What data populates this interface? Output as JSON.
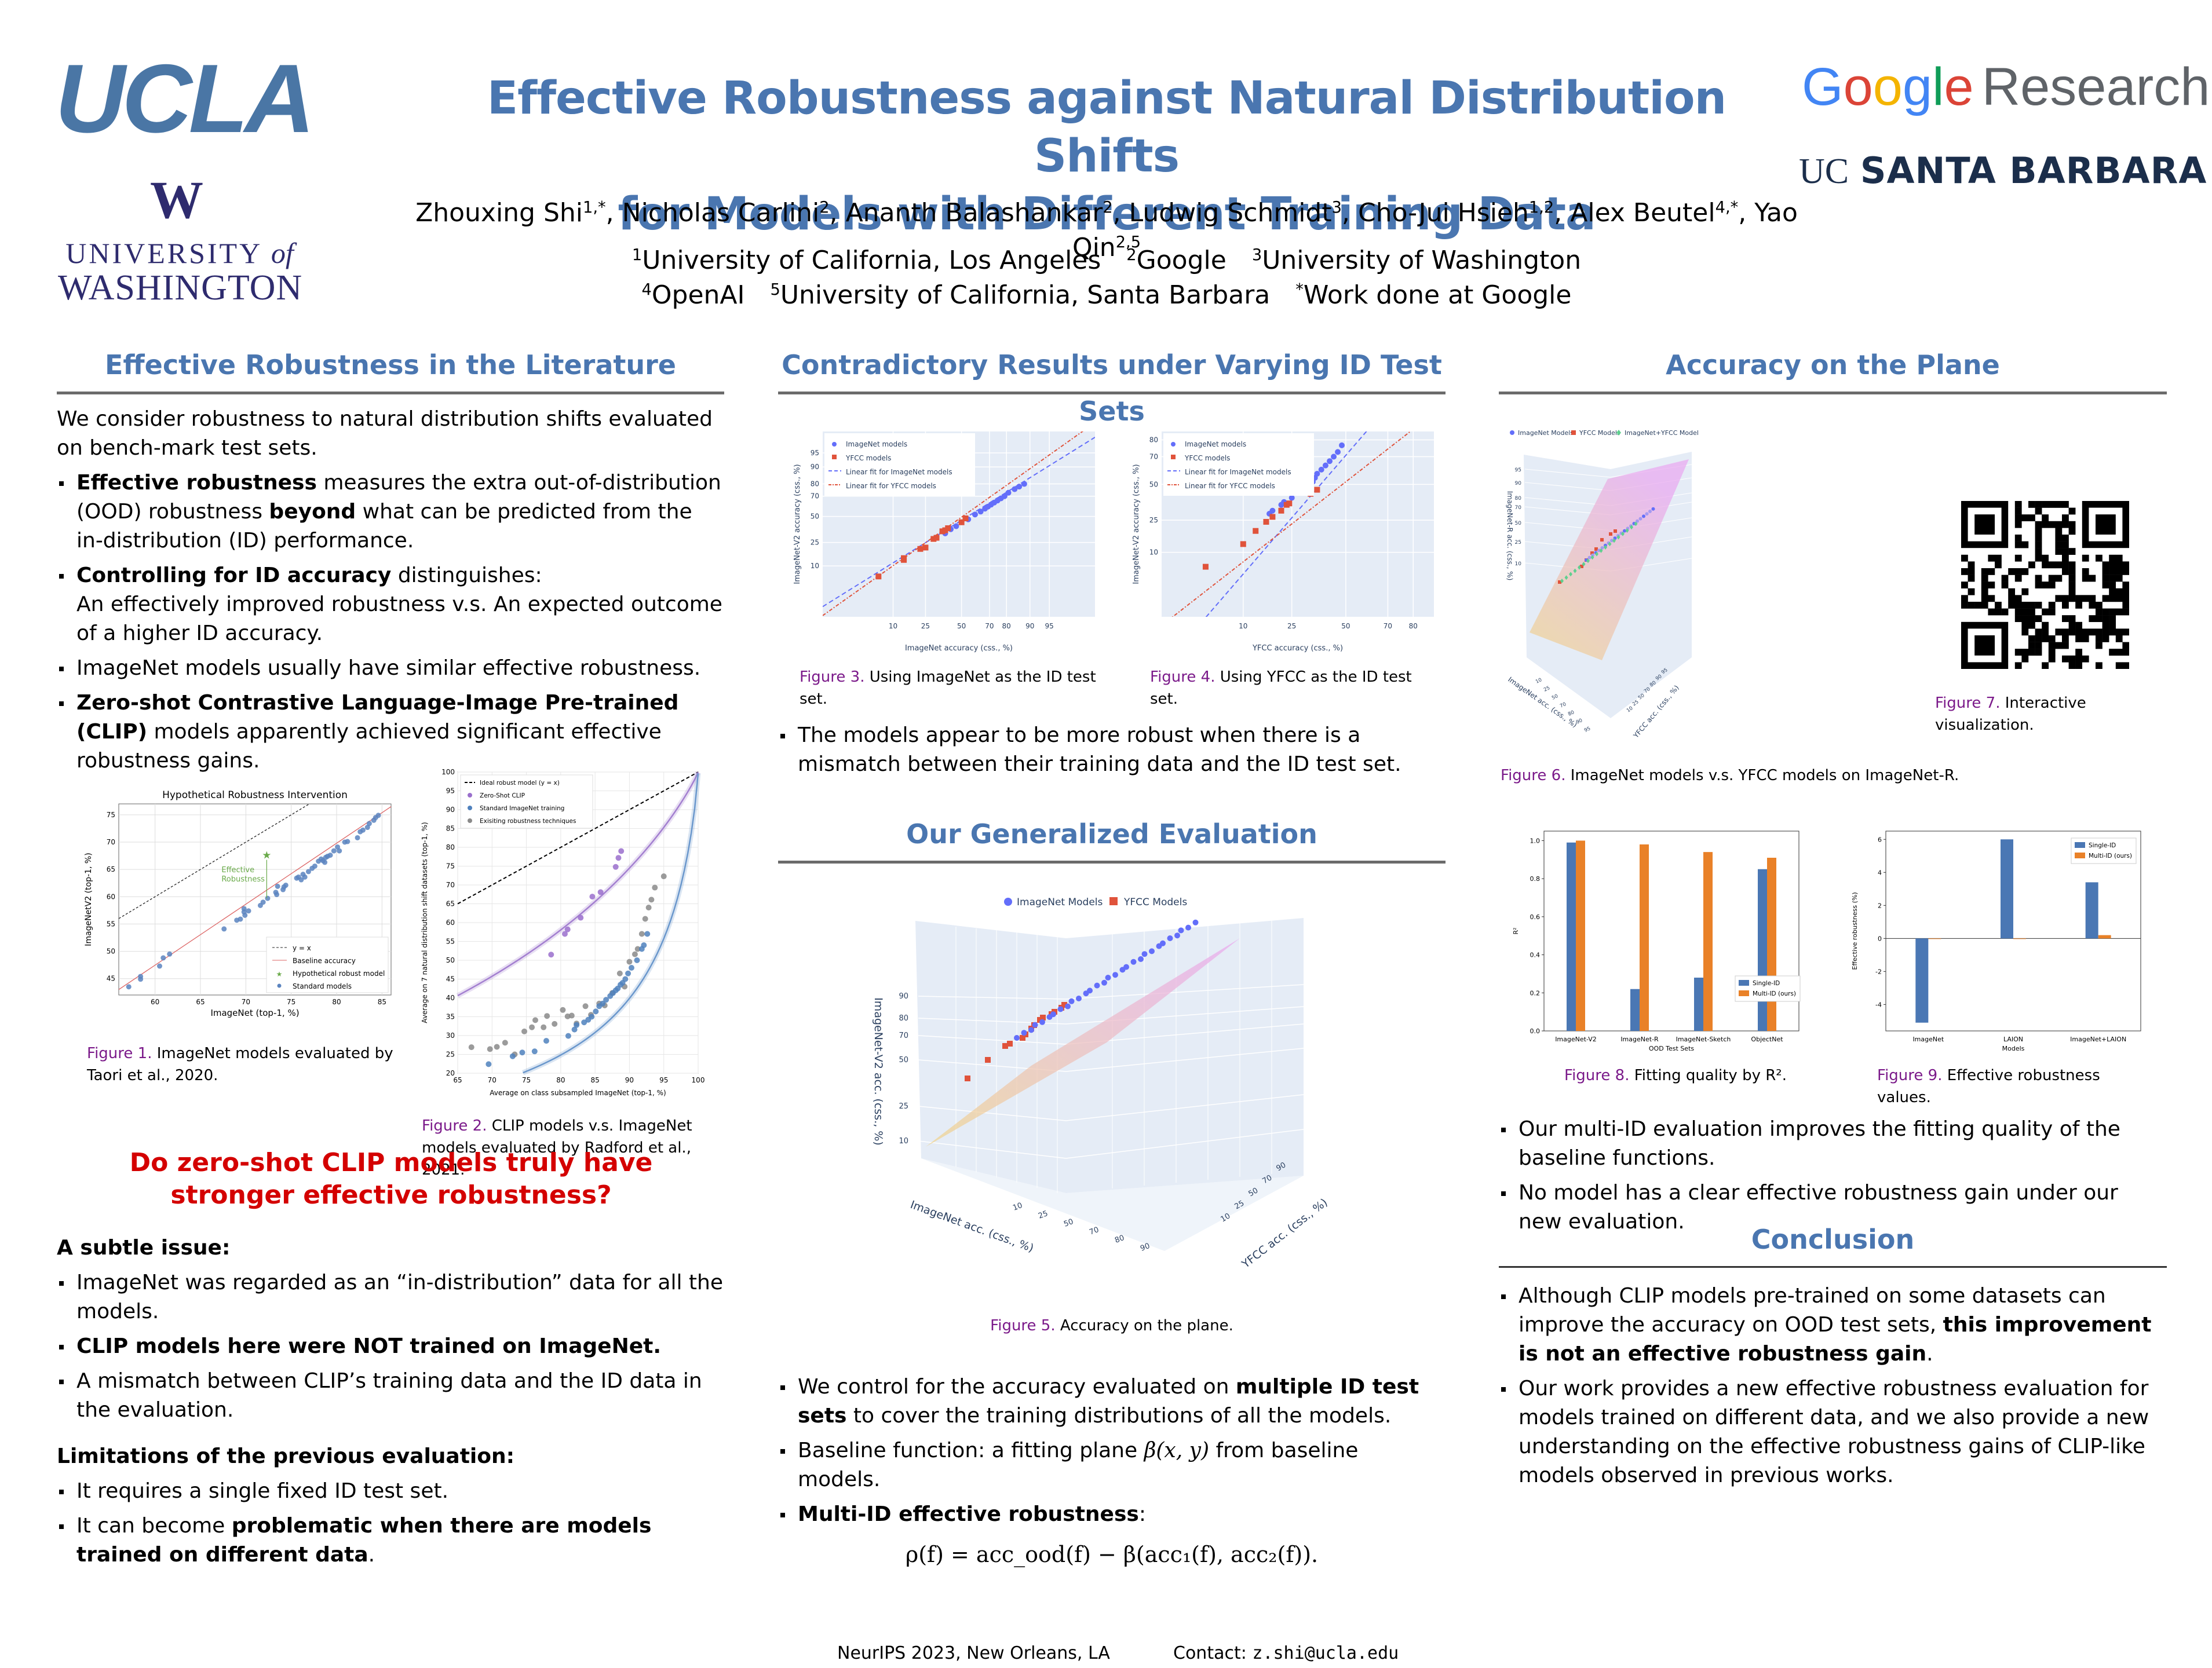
{
  "header": {
    "title_line1": "Effective Robustness against Natural Distribution Shifts",
    "title_line2": "for Models with Different Training Data",
    "authors": [
      {
        "name": "Zhouxing Shi",
        "sup": "1,*"
      },
      {
        "name": "Nicholas Carlini",
        "sup": "2"
      },
      {
        "name": "Ananth Balashankar",
        "sup": "2"
      },
      {
        "name": "Ludwig Schmidt",
        "sup": "3"
      },
      {
        "name": "Cho-Jui Hsieh",
        "sup": "1,2"
      },
      {
        "name": "Alex Beutel",
        "sup": "4,*"
      },
      {
        "name": "Yao Qin",
        "sup": "2,5"
      }
    ],
    "affiliations_line1": [
      {
        "sup": "1",
        "text": "University of California, Los Angeles"
      },
      {
        "sup": "2",
        "text": "Google"
      },
      {
        "sup": "3",
        "text": "University of Washington"
      }
    ],
    "affiliations_line2": [
      {
        "sup": "4",
        "text": "OpenAI"
      },
      {
        "sup": "5",
        "text": "University of California, Santa Barbara"
      },
      {
        "sup": "*",
        "text": "Work done at Google"
      }
    ],
    "logos": {
      "ucla": "UCLA",
      "uw_mark": "W",
      "uw_line1": "UNIVERSITY",
      "uw_of": "of",
      "uw_line2": "WASHINGTON",
      "google": [
        "G",
        "o",
        "o",
        "g",
        "l",
        "e"
      ],
      "google_suffix": "Research",
      "ucsb_uc": "UC",
      "ucsb_rest": "SANTA BARBARA"
    }
  },
  "colors": {
    "heading_blue": "#4a76b0",
    "question_red": "#d40000",
    "figure_label_purple": "#7b1a8a",
    "imagenet_blue": "#636efa",
    "yfcc_red": "#e0533b",
    "combined_green": "#5fd08f",
    "bar_blue": "#4a77b4",
    "bar_orange": "#e98128"
  },
  "col1": {
    "heading": "Effective Robustness in the Literature",
    "intro": "We consider robustness to natural distribution shifts evaluated on bench-mark test sets.",
    "bullets": [
      {
        "bold": "Effective robustness",
        "rest1": " measures the extra out-of-distribution (OOD) robustness ",
        "bold2": "beyond",
        "rest2": " what can be predicted from the in-distribution (ID) performance."
      },
      {
        "bold": "Controlling for ID accuracy",
        "rest1": " distinguishes:",
        "line2": "An effectively improved robustness v.s. An expected outcome of a higher ID accuracy."
      },
      {
        "text": "ImageNet models usually have similar effective robustness."
      },
      {
        "bold": "Zero-shot Contrastive Language-Image Pre-trained (CLIP)",
        "rest1": " models apparently achieved significant effective robustness gains."
      }
    ],
    "fig1_caption_label": "Figure 1.",
    "fig1_caption_text": " ImageNet models evaluated by Taori et al., 2020.",
    "fig2_caption_label": "Figure 2.",
    "fig2_caption_text": " CLIP models v.s. ImageNet models evaluated by Radford et al., 2021.",
    "question": "Do zero-shot CLIP models truly have stronger effective robustness?",
    "subtle_heading": "A subtle issue:",
    "subtle_bullets": [
      {
        "text": "ImageNet was regarded as an “in-distribution” data for all the models."
      },
      {
        "bold": "CLIP models here were NOT trained on ImageNet."
      },
      {
        "text": "A mismatch between CLIP’s training data and the ID data in the evaluation."
      }
    ],
    "limit_heading": "Limitations of the previous evaluation:",
    "limit_bullets": [
      {
        "text": "It requires a single fixed ID test set."
      },
      {
        "pre": "It can become ",
        "bold": "problematic when there are models trained on different data",
        "post": "."
      }
    ]
  },
  "col2": {
    "heading": "Contradictory Results under Varying ID Test Sets",
    "fig3_caption_label": "Figure 3.",
    "fig3_caption_text": " Using ImageNet as the ID test set.",
    "fig4_caption_label": "Figure 4.",
    "fig4_caption_text": " Using YFCC as the ID test set.",
    "bullet1": "The models appear to be more robust when there is a mismatch between their training data and the ID test set.",
    "heading2": "Our Generalized Evaluation",
    "fig5_caption_label": "Figure 5.",
    "fig5_caption_text": " Accuracy on the plane.",
    "bullets2": [
      {
        "pre": "We control for the accuracy evaluated on ",
        "bold": "multiple ID test sets",
        "post": " to cover the training distributions of all the models."
      },
      {
        "pre": "Baseline function: a fitting plane ",
        "math": "β(x, y)",
        "post": " from baseline models."
      },
      {
        "bold": "Multi-ID effective robustness",
        "post": ":"
      }
    ],
    "equation": "ρ(f) = acc_ood(f) − β(acc₁(f), acc₂(f))."
  },
  "col3": {
    "heading": "Accuracy on the Plane",
    "fig6_caption_label": "Figure 6.",
    "fig6_caption_text": " ImageNet models v.s. YFCC models on ImageNet-R.",
    "fig7_caption_label": "Figure 7.",
    "fig7_caption_text": " Interactive visualization.",
    "fig8_caption_label": "Figure 8.",
    "fig8_caption_text": " Fitting quality by R².",
    "fig9_caption_label": "Figure 9.",
    "fig9_caption_text": " Effective robustness values.",
    "bullets": [
      {
        "text": "Our multi-ID evaluation improves the fitting quality of the baseline functions."
      },
      {
        "text": "No model has a clear effective robustness gain under our new evaluation."
      }
    ],
    "heading2": "Conclusion",
    "conclusion": [
      {
        "pre": "Although CLIP models pre-trained on some datasets can improve the accuracy on OOD test sets, ",
        "bold": "this improvement is not an effective robustness gain",
        "post": "."
      },
      {
        "pre": "Our work provides a new effective robustness evaluation for models trained on different data, and we also provide a new understanding on the effective robustness gains of CLIP-like models observed in previous works."
      }
    ],
    "qr_icon": "qr-code"
  },
  "footer": {
    "venue": "NeurIPS 2023, New Orleans, LA",
    "contact_label": "Contact:",
    "contact_email": "z.shi@ucla.edu"
  },
  "chart_data": [
    {
      "id": "fig1",
      "type": "scatter",
      "title": "Hypothetical Robustness Intervention",
      "xlabel": "ImageNet (top-1, %)",
      "ylabel": "ImageNetV2 (top-1, %)",
      "xlim": [
        56,
        86
      ],
      "ylim": [
        42,
        77
      ],
      "xticks": [
        60,
        65,
        70,
        75,
        80,
        85
      ],
      "yticks": [
        45,
        50,
        55,
        60,
        65,
        70,
        75
      ],
      "grid": true,
      "legend": [
        "y = x",
        "Baseline accuracy",
        "Hypothetical robust model",
        "Standard models"
      ],
      "legend_position": "bottom-right",
      "annotation": "Effective Robustness",
      "baseline_line": {
        "x": [
          56,
          86
        ],
        "y": [
          43,
          76.5
        ]
      },
      "hypothetical_model": {
        "x": 72.3,
        "y": 67.6,
        "from_y": 59.7
      },
      "series": [
        {
          "name": "Standard models",
          "x": [
            57.1,
            58.4,
            58.4,
            60.5,
            60.9,
            61.6,
            67.6,
            69.0,
            69.4,
            69.8,
            69.8,
            69.9,
            70.3,
            71.6,
            71.9,
            72.4,
            73.3,
            73.4,
            73.5,
            74.1,
            74.2,
            74.4,
            75.6,
            75.8,
            76.1,
            76.3,
            76.5,
            76.9,
            77.3,
            77.6,
            78.0,
            78.3,
            78.5,
            78.7,
            78.8,
            79.0,
            79.3,
            79.7,
            80.1,
            80.3,
            80.9,
            81.2,
            82.3,
            82.6,
            82.9,
            83.4,
            83.6,
            84.1,
            84.3,
            84.6
          ],
          "y": [
            43.5,
            44.9,
            45.4,
            47.3,
            48.8,
            49.5,
            54.1,
            55.7,
            55.9,
            57.2,
            57.8,
            56.6,
            57.4,
            58.4,
            59.0,
            59.7,
            60.8,
            60.4,
            61.9,
            61.3,
            61.8,
            62.1,
            63.4,
            63.6,
            63.1,
            64.1,
            63.6,
            64.6,
            65.2,
            65.6,
            66.5,
            66.9,
            66.6,
            66.3,
            67.2,
            67.4,
            67.6,
            68.4,
            69.1,
            68.4,
            70.0,
            70.1,
            70.8,
            71.9,
            72.2,
            72.7,
            73.4,
            74.0,
            74.5,
            74.9
          ]
        }
      ],
      "series_yx": {
        "name": "y = x",
        "x": [
          56,
          77
        ],
        "y": [
          56,
          77
        ]
      }
    },
    {
      "id": "fig2",
      "type": "scatter",
      "xlabel": "Average on class subsampled ImageNet (top-1, %)",
      "ylabel": "Average on 7 natural distribution shift datasets (top-1, %)",
      "xlim": [
        65,
        100
      ],
      "ylim": [
        20,
        100
      ],
      "xticks": [
        65,
        70,
        75,
        80,
        85,
        90,
        95,
        100
      ],
      "yticks": [
        20,
        25,
        30,
        35,
        40,
        45,
        50,
        55,
        60,
        65,
        70,
        75,
        80,
        85,
        90,
        95,
        100
      ],
      "grid": true,
      "legend": [
        "Ideal robust model (y = x)",
        "Zero-Shot CLIP",
        "Standard ImageNet training",
        "Exisiting robustness techniques"
      ],
      "legend_position": "top-left",
      "series": [
        {
          "name": "Zero-Shot CLIP",
          "x": [
            78.6,
            80.6,
            81.0,
            82.9,
            84.6,
            85.8,
            88.0,
            88.4,
            88.8
          ],
          "y": [
            51.5,
            57.0,
            58.2,
            61.3,
            66.9,
            68.1,
            74.8,
            77.2,
            79.0
          ]
        },
        {
          "name": "Standard ImageNet training",
          "x": [
            69.5,
            73.0,
            74.4,
            76.2,
            77.9,
            81.1,
            82.0,
            82.3,
            83.4,
            84.0,
            84.5,
            85.1,
            85.6,
            86.1,
            86.6,
            87.2,
            87.6,
            88.0,
            88.3,
            88.7,
            89.0,
            89.4,
            89.8,
            90.3,
            91.1,
            91.8,
            92.1,
            92.6
          ],
          "y": [
            22.4,
            24.5,
            25.5,
            25.8,
            28.6,
            29.9,
            31.6,
            32.8,
            33.5,
            34.2,
            35.0,
            36.4,
            37.8,
            38.5,
            39.5,
            40.5,
            41.3,
            42.0,
            42.5,
            43.5,
            44.0,
            45.0,
            46.5,
            48.0,
            50.0,
            53.0,
            54.0,
            57.0
          ]
        },
        {
          "name": "Exisiting robustness techniques",
          "x": [
            67.0,
            69.7,
            70.7,
            71.9,
            73.3,
            74.7,
            75.8,
            76.3,
            77.5,
            78.0,
            79.1,
            80.3,
            81.0,
            81.6,
            82.3,
            83.6,
            84.4,
            85.6,
            86.4,
            87.5,
            88.6,
            89.3,
            90.0,
            90.8,
            91.2,
            91.8,
            92.3,
            92.8,
            93.2,
            93.7,
            95.0
          ],
          "y": [
            26.9,
            26.4,
            27.0,
            28.1,
            25.0,
            31.1,
            32.2,
            34.1,
            32.2,
            35.2,
            33.1,
            36.8,
            35.1,
            35.3,
            33.2,
            37.8,
            35.5,
            38.5,
            38.0,
            41.3,
            46.5,
            43.0,
            49.6,
            51.6,
            53.0,
            57.0,
            61.0,
            64.0,
            66.1,
            69.3,
            72.3
          ]
        }
      ],
      "ideal_line": {
        "x": [
          65,
          100
        ],
        "y": [
          65,
          100
        ]
      }
    },
    {
      "id": "fig3",
      "type": "scatter",
      "xlabel": "ImageNet accuracy (css., %)",
      "ylabel": "ImageNet-V2 accuracy (css., %)",
      "xticks": [
        10,
        25,
        50,
        70,
        80,
        90,
        95
      ],
      "yticks": [
        10,
        25,
        50,
        70,
        80,
        90,
        95
      ],
      "scale": "probit",
      "legend": [
        "ImageNet models",
        "YFCC models",
        "Linear fit for ImageNet models",
        "Linear fit for YFCC models"
      ],
      "legend_position": "top-left",
      "series": [
        {
          "name": "ImageNet models",
          "x": [
            38,
            42,
            46,
            50,
            55,
            60,
            64,
            67,
            69,
            71,
            73,
            75,
            77,
            79,
            81,
            84,
            86,
            88
          ],
          "y": [
            33,
            37,
            40,
            44,
            47,
            52,
            55,
            58,
            60,
            62,
            64,
            66,
            68,
            70,
            73,
            76,
            78,
            80
          ]
        },
        {
          "name": "YFCC models",
          "x": [
            6,
            14,
            14,
            22,
            25,
            30,
            32,
            36,
            38,
            40,
            50,
            53
          ],
          "y": [
            6,
            13,
            14,
            20,
            21,
            28,
            29,
            35,
            36,
            38,
            44,
            48
          ]
        }
      ]
    },
    {
      "id": "fig4",
      "type": "scatter",
      "xlabel": "YFCC accuracy (css., %)",
      "ylabel": "ImageNet-V2 accuracy (css., %)",
      "xticks": [
        10,
        25,
        50,
        70,
        80
      ],
      "yticks": [
        10,
        25,
        50,
        70,
        80
      ],
      "scale": "probit",
      "legend": [
        "ImageNet models",
        "YFCC models",
        "Linear fit for ImageNet models",
        "Linear fit for YFCC models"
      ],
      "legend_position": "top-left",
      "series": [
        {
          "name": "ImageNet models",
          "x": [
            17,
            18,
            21,
            22,
            25,
            28,
            30,
            34,
            35,
            36,
            38,
            40,
            42,
            44,
            46,
            48
          ],
          "y": [
            29,
            31,
            35,
            37,
            40,
            45,
            48,
            52,
            55,
            58,
            61,
            64,
            67,
            70,
            73,
            77
          ]
        },
        {
          "name": "YFCC models",
          "x": [
            4,
            10,
            13,
            16,
            18,
            21,
            23,
            24,
            33,
            36
          ],
          "y": [
            6,
            13,
            19,
            24,
            27,
            31,
            35,
            36,
            43,
            46
          ]
        }
      ]
    },
    {
      "id": "fig5",
      "type": "scatter",
      "subtype": "3d",
      "xlabel": "ImageNet acc. (css., %)",
      "ylabel": "YFCC acc. (css., %)",
      "zlabel": "ImageNet-V2 acc. (css., %)",
      "xticks": [
        10,
        25,
        50,
        70,
        80,
        90
      ],
      "yticks": [
        10,
        25,
        50,
        70,
        90
      ],
      "zticks": [
        10,
        25,
        50,
        70,
        80,
        90
      ],
      "legend": [
        "ImageNet Models",
        "YFCC Models"
      ],
      "legend_position": "top"
    },
    {
      "id": "fig6",
      "type": "scatter",
      "subtype": "3d",
      "xlabel": "ImageNet acc. (css., %)",
      "ylabel": "YFCC acc. (css., %)",
      "zlabel": "ImageNet-R acc. (css., %)",
      "xticks": [
        10,
        25,
        50,
        70,
        80,
        90,
        95
      ],
      "yticks": [
        10,
        25,
        50,
        70,
        80,
        90,
        95
      ],
      "zticks": [
        10,
        25,
        50,
        70,
        80,
        90,
        95
      ],
      "legend": [
        "ImageNet Models",
        "YFCC Models",
        "ImageNet+YFCC Model"
      ],
      "legend_position": "top"
    },
    {
      "id": "fig8",
      "type": "bar",
      "categories": [
        "ImageNet-V2",
        "ImageNet-R",
        "ImageNet-Sketch",
        "ObjectNet"
      ],
      "series": [
        {
          "name": "Single-ID",
          "values": [
            0.99,
            0.22,
            0.28,
            0.85
          ]
        },
        {
          "name": "Multi-ID (ours)",
          "values": [
            1.0,
            0.98,
            0.94,
            0.91
          ]
        }
      ],
      "xlabel": "OOD Test Sets",
      "ylabel": "R²",
      "ylim": [
        0,
        1.05
      ],
      "yticks": [
        0.0,
        0.2,
        0.4,
        0.6,
        0.8,
        1.0
      ],
      "legend_position": "bottom-right"
    },
    {
      "id": "fig9",
      "type": "bar",
      "categories": [
        "ImageNet",
        "LAION",
        "ImageNet+LAION"
      ],
      "series": [
        {
          "name": "Single-ID",
          "values": [
            -5.1,
            6.0,
            3.4
          ]
        },
        {
          "name": "Multi-ID (ours)",
          "values": [
            0.0,
            0.0,
            0.2
          ]
        }
      ],
      "xlabel": "Models",
      "ylabel": "Effective robustness (%)",
      "ylim": [
        -5.6,
        6.5
      ],
      "yticks": [
        -4,
        -2,
        0,
        2,
        4,
        6
      ],
      "legend_position": "top-right"
    }
  ]
}
